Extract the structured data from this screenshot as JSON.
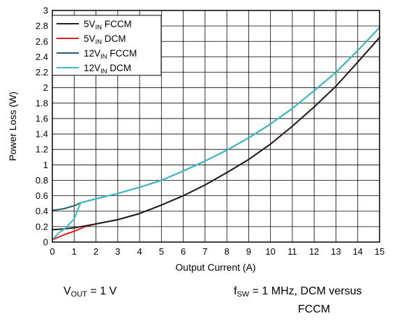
{
  "chart_data": {
    "type": "line",
    "xlabel": "Output Current (A)",
    "ylabel": "Power Loss (W)",
    "xlim": [
      0,
      15
    ],
    "ylim": [
      0,
      3
    ],
    "x_ticks": [
      "0",
      "1",
      "2",
      "3",
      "4",
      "5",
      "6",
      "7",
      "8",
      "9",
      "10",
      "11",
      "12",
      "13",
      "14",
      "15"
    ],
    "y_ticks": [
      "0",
      "0.2",
      "0.4",
      "0.6",
      "0.8",
      "1",
      "1.2",
      "1.4",
      "1.6",
      "1.8",
      "2",
      "2.2",
      "2.4",
      "2.6",
      "2.8",
      "3"
    ],
    "grid": true,
    "legend_position": "top-left",
    "series": [
      {
        "name_main": "5V",
        "name_sub": "IN",
        "name_suffix": " FCCM",
        "color": "#1f1f1f",
        "x": [
          0,
          0.5,
          1,
          1.5,
          2,
          3,
          4,
          5,
          6,
          7,
          8,
          9,
          10,
          11,
          12,
          13,
          14,
          15
        ],
        "y": [
          0.16,
          0.17,
          0.185,
          0.21,
          0.235,
          0.29,
          0.37,
          0.48,
          0.6,
          0.74,
          0.9,
          1.07,
          1.27,
          1.5,
          1.75,
          2.02,
          2.33,
          2.65
        ]
      },
      {
        "name_main": "5V",
        "name_sub": "IN",
        "name_suffix": " DCM",
        "color": "#e01e1e",
        "x": [
          0,
          0.5,
          1,
          1.5,
          2,
          3,
          4,
          5,
          6,
          7,
          8,
          9,
          10,
          11,
          12,
          13,
          14,
          15
        ],
        "y": [
          0.03,
          0.09,
          0.14,
          0.2,
          0.235,
          0.29,
          0.37,
          0.48,
          0.6,
          0.74,
          0.9,
          1.07,
          1.27,
          1.5,
          1.75,
          2.02,
          2.33,
          2.65
        ]
      },
      {
        "name_main": "12V",
        "name_sub": "IN",
        "name_suffix": " FCCM",
        "color": "#1f5f6b",
        "x": [
          0,
          0.5,
          1,
          1.3,
          2,
          3,
          4,
          5,
          6,
          7,
          8,
          9,
          10,
          11,
          12,
          13,
          14,
          15
        ],
        "y": [
          0.41,
          0.43,
          0.47,
          0.51,
          0.56,
          0.63,
          0.71,
          0.8,
          0.92,
          1.05,
          1.19,
          1.35,
          1.53,
          1.73,
          1.96,
          2.2,
          2.48,
          2.78
        ]
      },
      {
        "name_main": "12V",
        "name_sub": "IN",
        "name_suffix": " DCM",
        "color": "#3ab9c8",
        "x": [
          0,
          0.3,
          0.6,
          1,
          1.3,
          2,
          3,
          4,
          5,
          6,
          7,
          8,
          9,
          10,
          11,
          12,
          13,
          14,
          15
        ],
        "y": [
          0.03,
          0.12,
          0.18,
          0.3,
          0.51,
          0.56,
          0.63,
          0.71,
          0.8,
          0.92,
          1.05,
          1.19,
          1.35,
          1.53,
          1.73,
          1.96,
          2.2,
          2.48,
          2.78
        ]
      }
    ]
  },
  "captions": {
    "vout": {
      "main": "V",
      "sub": "OUT",
      "rest": " = 1 V"
    },
    "fsw": {
      "main": "f",
      "sub": "SW",
      "rest": " = 1 MHz, DCM versus",
      "line2": "FCCM"
    }
  }
}
